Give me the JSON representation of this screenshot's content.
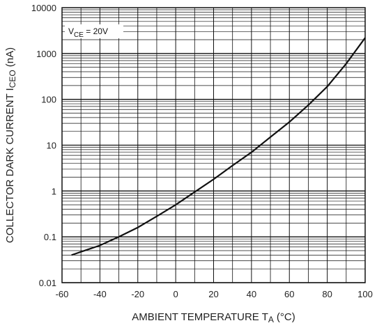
{
  "chart_data": {
    "type": "line",
    "title": "",
    "xlabel": {
      "main": "AMBIENT TEMPERATURE T",
      "sub": "A",
      "unit": "(°C)"
    },
    "ylabel": {
      "main": "COLLECTOR DARK CURRENT I",
      "sub": "CEO",
      "unit": "(nA)"
    },
    "x_scale": "linear",
    "y_scale": "log",
    "xlim": [
      -60,
      100
    ],
    "ylim": [
      0.01,
      10000
    ],
    "x_ticks": [
      -60,
      -40,
      -20,
      0,
      20,
      40,
      60,
      80,
      100
    ],
    "x_tick_labels": [
      "-60",
      "-40",
      "-20",
      "0",
      "20",
      "40",
      "60",
      "80",
      "100"
    ],
    "y_ticks": [
      0.01,
      0.1,
      1,
      10,
      100,
      1000,
      10000
    ],
    "y_tick_labels": [
      "0.01",
      "0.1",
      "1",
      "10",
      "100",
      "1000",
      "10000"
    ],
    "grid": true,
    "annotation": {
      "main": "V",
      "sub": "CE",
      "rest": " = 20V"
    },
    "series": [
      {
        "x": [
          -55,
          -40,
          -30,
          -20,
          -10,
          0,
          10,
          20,
          30,
          40,
          50,
          60,
          70,
          80,
          90,
          100
        ],
        "y": [
          0.04,
          0.065,
          0.1,
          0.16,
          0.28,
          0.5,
          0.95,
          1.8,
          3.6,
          7.0,
          15,
          32,
          75,
          190,
          600,
          2200
        ]
      }
    ],
    "colors": {
      "line": "#111111",
      "grid": "#111111",
      "background": "#ffffff"
    }
  }
}
